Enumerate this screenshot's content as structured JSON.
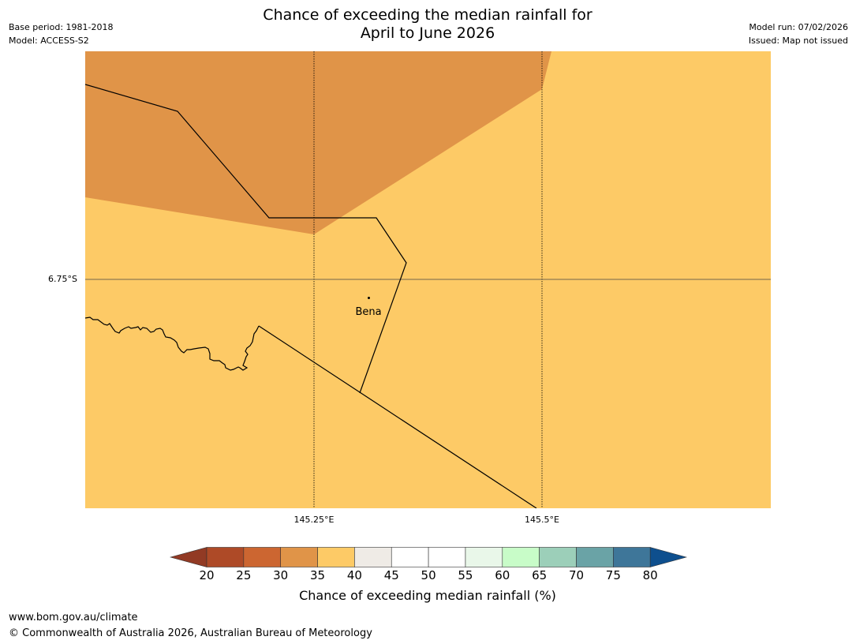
{
  "title": {
    "line1": "Chance of exceeding the median rainfall for",
    "line2": "April to June 2026"
  },
  "meta_left": {
    "base_period": "Base period: 1981-2018",
    "model": "Model: ACCESS-S2"
  },
  "meta_right": {
    "model_run": "Model run: 07/02/2026",
    "issued": "Issued: Map not issued"
  },
  "map": {
    "latitude_label": "6.75°S",
    "longitude_labels": [
      "145.25°E",
      "145.5°E"
    ],
    "place": "Bena",
    "colors": {
      "band_30_35": "#e09448",
      "band_35_40": "#fdca66",
      "border": "#000000",
      "gridline": "#444444"
    }
  },
  "legend": {
    "title": "Chance of exceeding median rainfall (%)",
    "ticks": [
      "20",
      "25",
      "30",
      "35",
      "40",
      "45",
      "50",
      "55",
      "60",
      "65",
      "70",
      "75",
      "80"
    ],
    "low_extend_color": "#923a24",
    "high_extend_color": "#0e4f8e",
    "bins": [
      {
        "range": "20-25",
        "color": "#ae4a27"
      },
      {
        "range": "25-30",
        "color": "#cc6631"
      },
      {
        "range": "30-35",
        "color": "#e09448"
      },
      {
        "range": "35-40",
        "color": "#fdca66"
      },
      {
        "range": "40-45",
        "color": "#efebe6"
      },
      {
        "range": "45-50",
        "color": "#ffffff"
      },
      {
        "range": "50-55",
        "color": "#ffffff"
      },
      {
        "range": "55-60",
        "color": "#e9f7e9"
      },
      {
        "range": "60-65",
        "color": "#c8fcc8"
      },
      {
        "range": "65-70",
        "color": "#9ccfb9"
      },
      {
        "range": "70-75",
        "color": "#6aa3a6"
      },
      {
        "range": "75-80",
        "color": "#3e7699"
      }
    ]
  },
  "footer": {
    "url": "www.bom.gov.au/climate",
    "copyright": "© Commonwealth of Australia 2026, Australian Bureau of Meteorology"
  }
}
